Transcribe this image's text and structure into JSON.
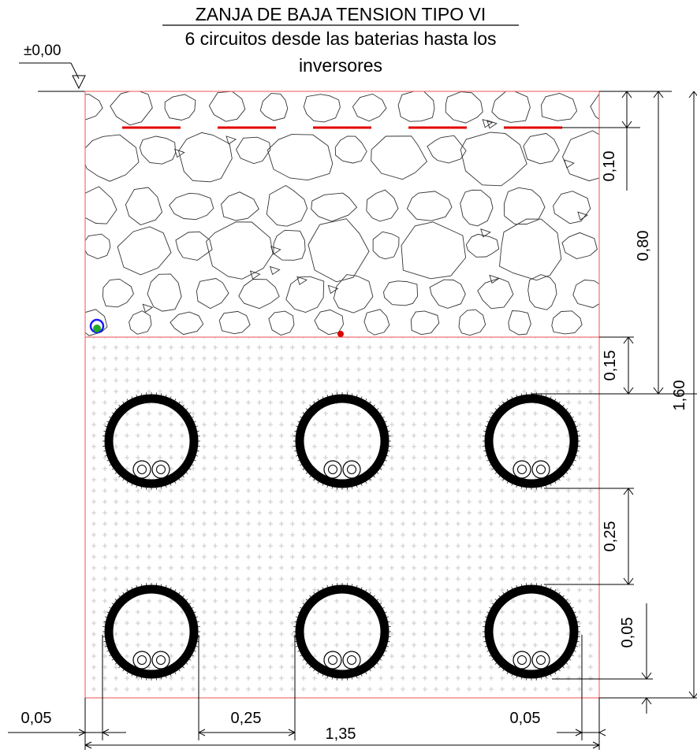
{
  "title": "ZANJA DE BAJA TENSION TIPO VI",
  "subtitle_line1": "6 circuitos desde las baterias hasta los",
  "subtitle_line2": "inversores",
  "level_mark": "±0,00",
  "dimensions": {
    "top_layer_offset": "0,10",
    "upper_layer_depth": "0,80",
    "total_depth": "1,60",
    "cover_over_pipes": "0,15",
    "pipe_row_spacing": "0,25",
    "bottom_clearance": "0,05",
    "left_side_clearance": "0,05",
    "pipe_horizontal_spacing": "0,25",
    "right_side_clearance": "0,05",
    "total_width": "1,35"
  },
  "pipes": {
    "rows": 2,
    "columns": 3,
    "cables_per_pipe": 2
  },
  "warning_tapes": 5,
  "colors": {
    "trench_outline": "#f07070",
    "warning_tape": "#e00000",
    "pipe": "#000000",
    "marker_blue": "#1a1aff",
    "marker_green": "#22aa22",
    "marker_red": "#e00000",
    "fill_plus": "#bbbbbb"
  }
}
